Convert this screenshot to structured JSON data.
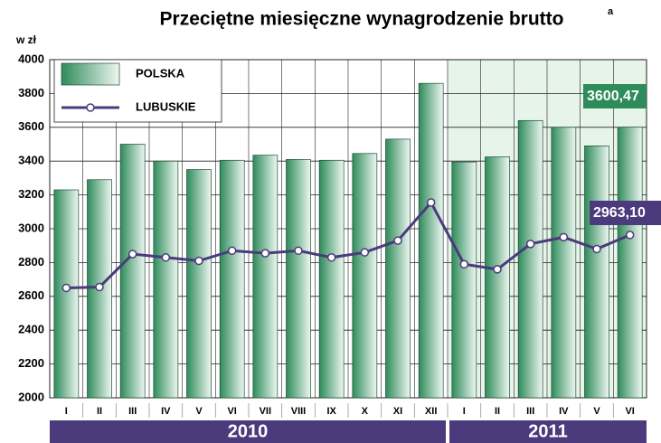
{
  "chart_data": {
    "type": "bar",
    "title": "Przeciętne miesięczne wynagrodzenie brutto",
    "title_note": "a",
    "ylabel": "w zł",
    "categories": [
      "I",
      "II",
      "III",
      "IV",
      "V",
      "VI",
      "VII",
      "VIII",
      "IX",
      "X",
      "XI",
      "XII",
      "I",
      "II",
      "III",
      "IV",
      "V",
      "VI"
    ],
    "groups": [
      "2010",
      "2011"
    ],
    "ylim": [
      2000,
      4000
    ],
    "yticks": [
      2000,
      2200,
      2400,
      2600,
      2800,
      3000,
      3200,
      3400,
      3600,
      3800,
      4000
    ],
    "grid": true,
    "legend": "upper left",
    "series": [
      {
        "name": "POLSKA",
        "type": "bar",
        "color": "#2e8b5a",
        "values": [
          3230,
          3290,
          3500,
          3400,
          3350,
          3405,
          3435,
          3410,
          3405,
          3445,
          3530,
          3860,
          3395,
          3425,
          3640,
          3600,
          3490,
          3600.47
        ],
        "value_labels": [
          null,
          null,
          null,
          null,
          null,
          null,
          null,
          null,
          null,
          null,
          null,
          null,
          null,
          null,
          null,
          null,
          null,
          "3600,47"
        ]
      },
      {
        "name": "LUBUSKIE",
        "type": "line",
        "color": "#4b3a7c",
        "values": [
          2650,
          2655,
          2850,
          2830,
          2810,
          2870,
          2855,
          2870,
          2830,
          2860,
          2930,
          3155,
          2790,
          2760,
          2910,
          2950,
          2880,
          2963.1
        ],
        "value_labels": [
          null,
          null,
          null,
          null,
          null,
          null,
          null,
          null,
          null,
          null,
          null,
          null,
          null,
          null,
          null,
          null,
          null,
          "2963,10"
        ]
      }
    ]
  }
}
